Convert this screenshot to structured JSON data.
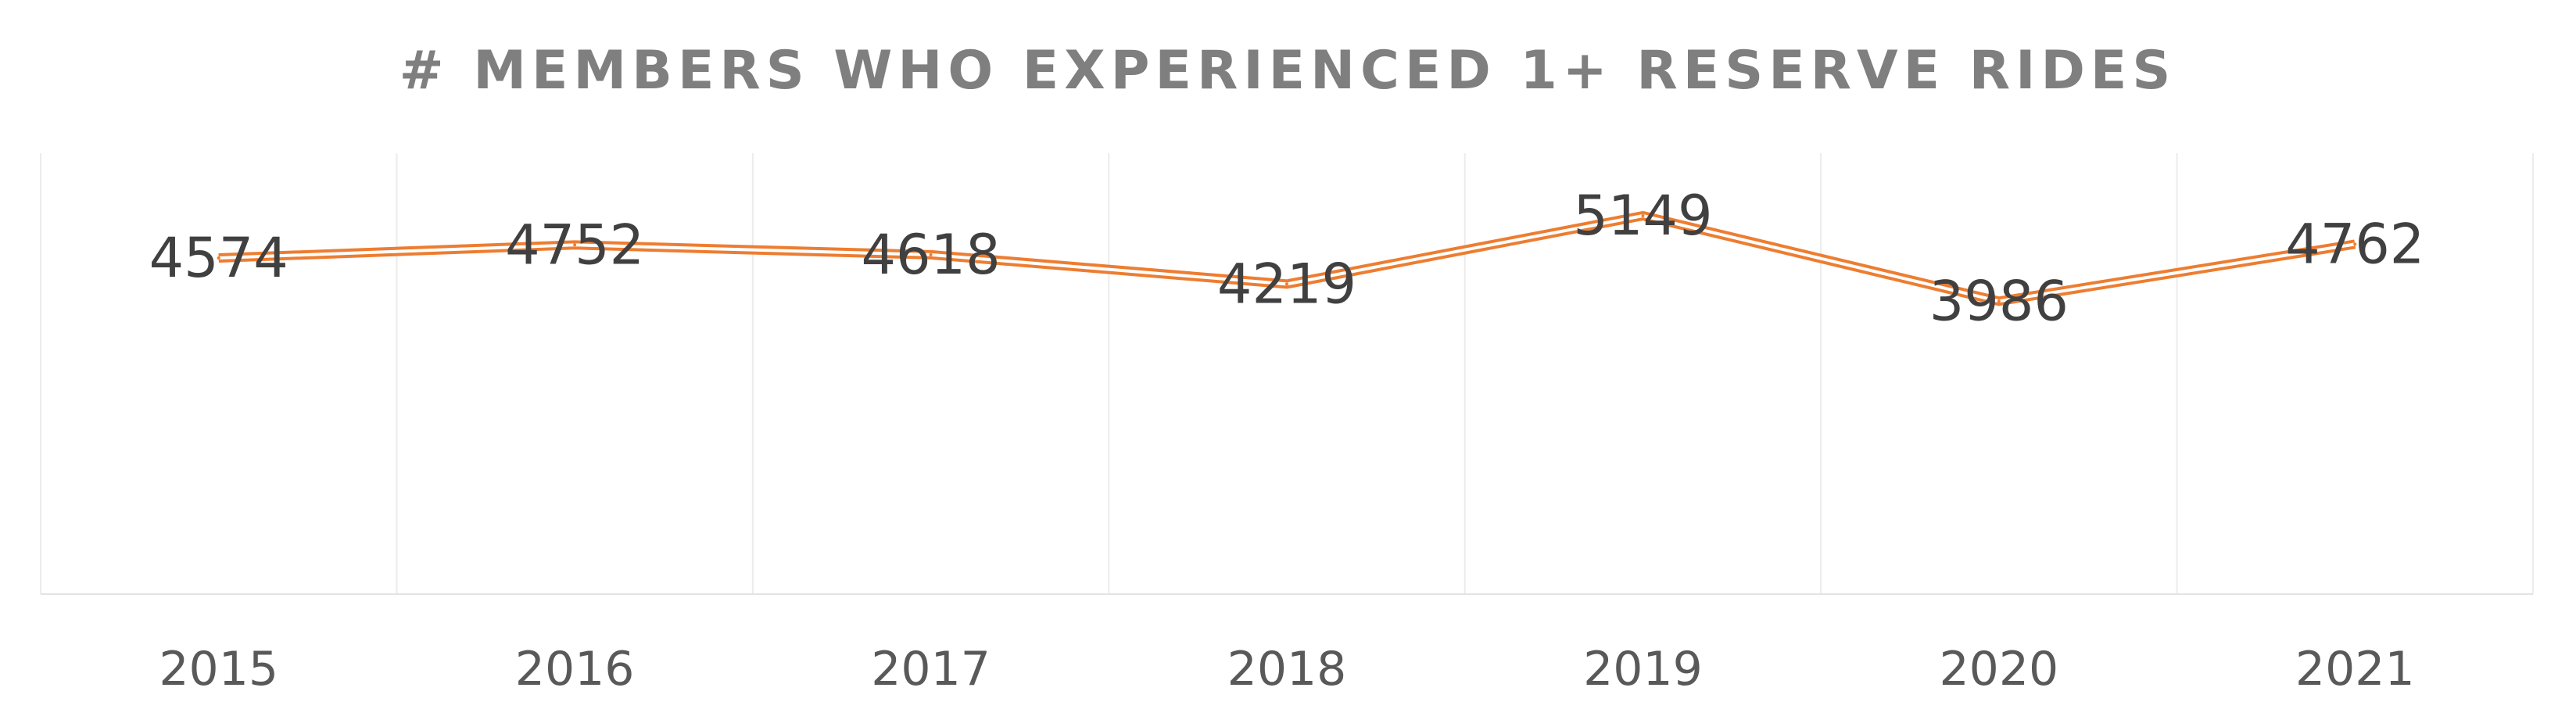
{
  "chart_data": {
    "type": "line",
    "title": "# MEMBERS WHO EXPERIENCED 1+ RESERVE RIDES",
    "xlabel": "",
    "ylabel": "",
    "categories": [
      "2015",
      "2016",
      "2017",
      "2018",
      "2019",
      "2020",
      "2021"
    ],
    "series": [
      {
        "values": [
          4574,
          4752,
          4618,
          4219,
          5149,
          3986,
          4762
        ],
        "color": "#ed7d31"
      }
    ],
    "ylim": [
      0,
      6000
    ],
    "grid": {
      "vertical": true,
      "horizontal": false
    },
    "legend": "none",
    "data_labels": true
  }
}
